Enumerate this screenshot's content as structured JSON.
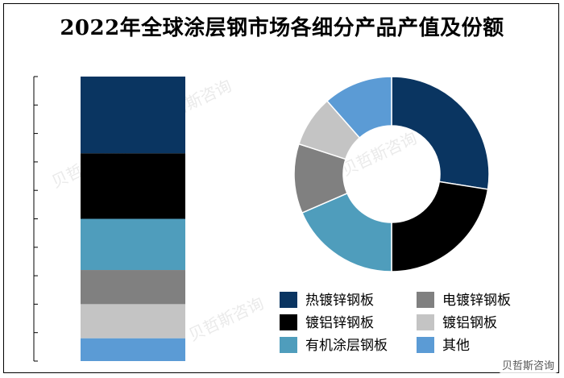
{
  "title": "2022年全球涂层钢市场各细分产品产值及份额",
  "watermark": "贝哲斯咨询",
  "chart_data": {
    "type": "stacked-bar-and-donut",
    "categories": [
      "热镀锌钢板",
      "镀铝锌钢板",
      "有机涂层钢板",
      "电镀锌钢板",
      "镀铝钢板",
      "其他"
    ],
    "colors": [
      "#0a3561",
      "#000000",
      "#4f9dbc",
      "#808080",
      "#c4c4c4",
      "#5b9bd5"
    ],
    "bar_values": [
      27,
      23,
      18,
      12,
      12,
      8
    ],
    "donut_shares": [
      27.5,
      22.5,
      18.5,
      11.5,
      8.5,
      11.5
    ],
    "legend_order": [
      "热镀锌钢板",
      "电镀锌钢板",
      "镀铝锌钢板",
      "镀铝钢板",
      "有机涂层钢板",
      "其他"
    ],
    "legend_placement": "bottom-right",
    "grid": false
  }
}
